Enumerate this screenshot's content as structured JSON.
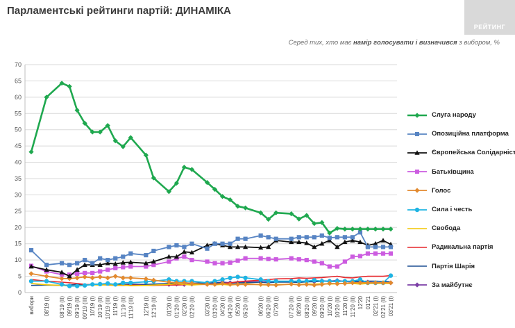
{
  "header": {
    "title": "Парламентські рейтинги партій: ДИНАМІКА",
    "logo_text": "РЕЙТИНГ",
    "subtitle_a": "Серед тих, хто має ",
    "subtitle_b": "намір голосувати і визначився",
    "subtitle_c": " з вибором, %"
  },
  "chart_data": {
    "type": "line",
    "title": "Парламентські рейтинги партій: ДИНАМІКА",
    "ylim": [
      0,
      70
    ],
    "ytick_step": 5,
    "grid": true,
    "legend_position": "right",
    "categories": [
      "вибори",
      "08'19 (I)",
      "08'19 (II)",
      "09'19 (I)",
      "09'19 (II)",
      "09'19 (III)",
      "10'19 (I)",
      "10'19 (II)",
      "10'19 (III)",
      "11'19 (I)",
      "11'19 (II)",
      "11'19 (III)",
      "12'19 (I)",
      "12'19 (II)",
      "01'20 (I)",
      "01'20 (II)",
      "02'20 (I)",
      "02'20 (II)",
      "03'20 (I)",
      "03'20 (II)",
      "04'20 (I)",
      "04'20 (II)",
      "05'20 (I)",
      "05'20 (II)",
      "06'20 (I)",
      "06'20 (II)",
      "07'20 (I)",
      "07'20 (II)",
      "08'20 (I)",
      "08'20 (II)",
      "09'20 (I)",
      "09'20 (II)",
      "10'20 (I)",
      "10'20 (II)",
      "11'20 (I)",
      "11'20 (II)",
      "12'20",
      "01'21",
      "02'21 (I)",
      "02'21 (II)",
      "03'21 (I)"
    ],
    "x": [
      0,
      2,
      4,
      5,
      6,
      7,
      8,
      9,
      10,
      11,
      12,
      13,
      15,
      16,
      18,
      19,
      20,
      21,
      23,
      24,
      25,
      26,
      27,
      28,
      30,
      31,
      32,
      34,
      35,
      36,
      37,
      38,
      39,
      40,
      41,
      42,
      43,
      44,
      45,
      46,
      47
    ],
    "series": [
      {
        "name": "Слуга народу",
        "color": "#1fa84f",
        "marker": "diamond",
        "width": 2.6,
        "values": [
          43.2,
          60,
          64.3,
          63.3,
          56,
          52,
          49.3,
          49.3,
          51.3,
          46.6,
          44.8,
          47.6,
          42.2,
          35.2,
          31,
          33.6,
          38.5,
          37.8,
          33.8,
          31.7,
          29.5,
          28.5,
          26.5,
          26,
          24.5,
          22.5,
          24.5,
          24.2,
          22.6,
          23.7,
          21.2,
          21.5,
          18.3,
          19.7,
          19.5,
          19.5,
          19.5,
          19.5,
          19.5,
          19.5,
          19.5
        ]
      },
      {
        "name": "Опозиційна платформа",
        "color": "#5784c3",
        "marker": "square",
        "width": 1.8,
        "values": [
          13,
          8.5,
          9,
          8.5,
          9,
          10,
          9,
          10.5,
          10,
          10.5,
          11,
          12,
          11.5,
          12.8,
          14,
          14.5,
          14,
          15,
          13.5,
          15,
          15,
          15,
          16.5,
          16.5,
          17.5,
          17,
          16.5,
          16.5,
          17,
          17,
          17,
          17.5,
          16.8,
          17,
          17,
          17,
          18.5,
          14,
          14,
          14,
          14
        ]
      },
      {
        "name": "Європейська Солідарність",
        "color": "#111111",
        "marker": "triangle",
        "width": 1.8,
        "values": [
          8,
          7,
          6.2,
          5,
          7,
          8.5,
          8.5,
          8.5,
          9,
          8.8,
          9.2,
          9.3,
          9,
          9.5,
          11,
          11,
          12.5,
          12.3,
          14.5,
          15,
          14.5,
          14,
          14,
          14,
          13.8,
          14,
          16,
          15.5,
          15.5,
          15.2,
          14,
          15,
          16,
          14,
          15.5,
          16,
          15.5,
          14.5,
          15,
          16,
          14.8
        ]
      },
      {
        "name": "Батьківщина",
        "color": "#cc5ce0",
        "marker": "square",
        "width": 1.8,
        "values": [
          8.2,
          6.5,
          5.5,
          5.5,
          5.8,
          6,
          6,
          6.5,
          7,
          7.5,
          7.8,
          8,
          8,
          8.5,
          9.5,
          10.5,
          11,
          10,
          9.5,
          9,
          9,
          9.2,
          9.8,
          10.5,
          10.5,
          10.3,
          10.2,
          10.5,
          10.2,
          10,
          9.5,
          9,
          8,
          8,
          9.5,
          11,
          11.2,
          12,
          12,
          12,
          12
        ]
      },
      {
        "name": "Голос",
        "color": "#e28a2f",
        "marker": "diamond",
        "width": 1.8,
        "values": [
          5.8,
          5,
          4.3,
          4.3,
          4.5,
          4.8,
          4.5,
          4.8,
          4.5,
          5,
          4.5,
          4.5,
          4.2,
          3.8,
          3.2,
          3,
          3,
          2.8,
          2.5,
          2.5,
          2.8,
          2.5,
          2.5,
          2.5,
          2.5,
          2.4,
          2.3,
          2.6,
          2.4,
          2.5,
          2.3,
          2.5,
          2.8,
          2.7,
          2.8,
          3,
          3,
          3,
          3,
          3,
          3
        ]
      },
      {
        "name": "Сила і честь",
        "color": "#1fb4e3",
        "marker": "circle",
        "width": 1.8,
        "values": [
          3.5,
          3.5,
          2.5,
          2,
          2,
          2.2,
          2.5,
          2.6,
          2.8,
          2.5,
          3,
          3,
          3.3,
          3.5,
          4,
          3.5,
          3.5,
          3.5,
          3,
          3.5,
          4,
          4.5,
          4.8,
          4.5,
          4,
          3.5,
          3.5,
          3.5,
          3.5,
          3.5,
          3.8,
          3.5,
          3.5,
          3.5,
          3.5,
          3.5,
          4,
          3,
          3,
          3,
          5.2
        ]
      },
      {
        "name": "Свобода",
        "color": "#f2c500",
        "marker": "none",
        "width": 1.6,
        "values": [
          2.8,
          2.4,
          2.2,
          2,
          2,
          2.3,
          2.4,
          2.3,
          2.4,
          2.2,
          2.3,
          2.1,
          2.2,
          2.3,
          2.5,
          2.7,
          2.5,
          2.3,
          2.6,
          2.4,
          2.5,
          2.3,
          2.5,
          2.7,
          2.4,
          2.3,
          2.5,
          2.5,
          2.5,
          2.6,
          2.6,
          2.7,
          2.6,
          2.7,
          2.8,
          2.8,
          2.6,
          2.8,
          2.8,
          2.8,
          2.8
        ]
      },
      {
        "name": "Радикальна партія",
        "color": "#e6262b",
        "marker": "none",
        "width": 1.6,
        "values": [
          4,
          3.5,
          3.2,
          3,
          2.8,
          2.5,
          2.4,
          2.5,
          2.3,
          2.2,
          2.2,
          2.3,
          2.2,
          2.2,
          2.3,
          2.3,
          2.4,
          2.5,
          2.5,
          2.6,
          2.8,
          3,
          3.3,
          3.5,
          3.8,
          4,
          4.2,
          4.3,
          4.5,
          4.4,
          4.5,
          4.6,
          4.8,
          5,
          4.6,
          4.5,
          4.8,
          5,
          5,
          5,
          5.2
        ]
      },
      {
        "name": "Партія Шарія",
        "color": "#1b4f92",
        "marker": "none",
        "width": 1.6,
        "values": [
          2.2,
          2.3,
          2.2,
          2.3,
          2.5,
          2.4,
          2.5,
          2.6,
          2.4,
          2.5,
          2.5,
          2.6,
          2.5,
          2.6,
          2.8,
          3,
          3,
          2.9,
          3,
          3,
          3,
          2.9,
          3,
          3,
          3.2,
          3,
          3.2,
          3.2,
          3.1,
          3.3,
          3.3,
          3.5,
          3.4,
          3.4,
          3.5,
          3.4,
          3.4,
          3.5,
          3.5,
          3.4,
          3.3
        ]
      },
      {
        "name": "За майбутнє",
        "color": "#7c3fa6",
        "marker": "diamond",
        "width": 1.8,
        "values": [
          null,
          null,
          null,
          null,
          null,
          null,
          null,
          null,
          null,
          null,
          null,
          null,
          null,
          null,
          2.5,
          2.6,
          2.5,
          2.6,
          2.8,
          3,
          3.2,
          3,
          3,
          3.2,
          3.3,
          3.2,
          3.3,
          3.3,
          3.5,
          3.4,
          3.4,
          3.6,
          3.5,
          3.7,
          3.4,
          3.3,
          3.5,
          3.2,
          3,
          3,
          3
        ]
      }
    ]
  }
}
